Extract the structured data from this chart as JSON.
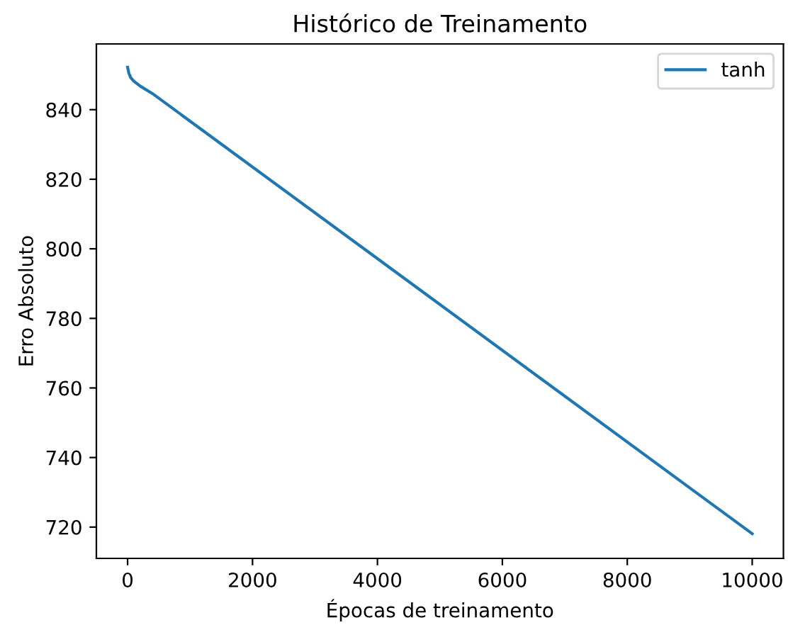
{
  "chart_data": {
    "type": "line",
    "title": "Histórico de Treinamento",
    "xlabel": "Épocas de treinamento",
    "ylabel": "Erro Absoluto",
    "series": [
      {
        "name": "tanh",
        "color": "#1f77b4",
        "x": [
          0,
          20,
          50,
          100,
          200,
          400,
          1000,
          10000
        ],
        "values": [
          852.2,
          850.5,
          849.2,
          848.2,
          846.8,
          844.6,
          836.7,
          718.1
        ]
      }
    ],
    "xlim": [
      -500,
      10500
    ],
    "xticks": [
      0,
      2000,
      4000,
      6000,
      8000,
      10000
    ],
    "ylim": [
      711,
      858.9
    ],
    "yticks": [
      720,
      740,
      760,
      780,
      800,
      820,
      840
    ],
    "legend": "top right",
    "grid": false,
    "marker": "none",
    "line_style": "solid"
  }
}
